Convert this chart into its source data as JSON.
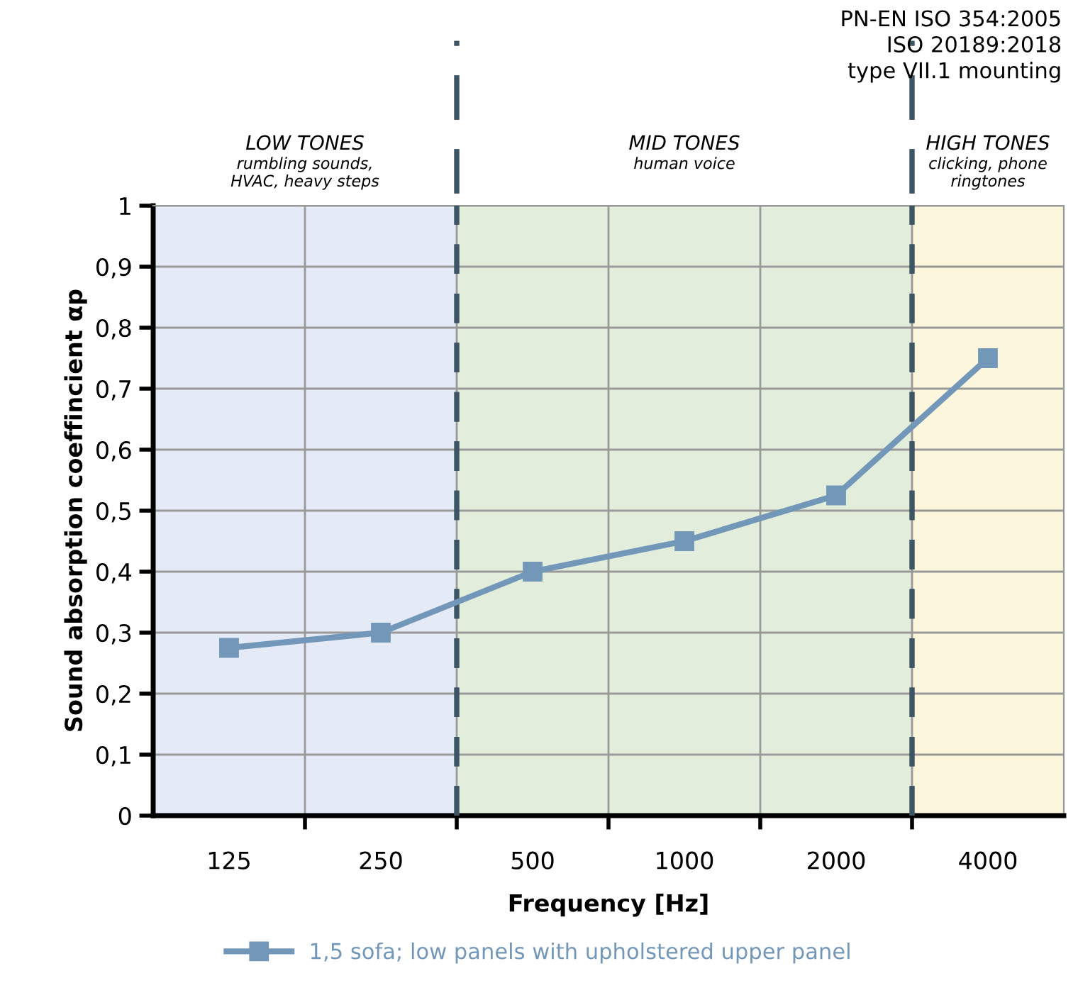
{
  "chart_data": {
    "type": "line",
    "xlabel": "Frequency [Hz]",
    "ylabel": "Sound absorption coeffincient αp",
    "categories": [
      "125",
      "250",
      "500",
      "1000",
      "2000",
      "4000"
    ],
    "series": [
      {
        "name": "1,5 sofa; low panels with upholstered upper panel",
        "color": "#7397b8",
        "values": [
          0.275,
          0.3,
          0.4,
          0.45,
          0.525,
          0.75
        ]
      }
    ],
    "ylim": [
      0,
      1
    ],
    "yticks": [
      0,
      {
        "value": 0.1,
        "label": "0,1"
      },
      {
        "value": 0.2,
        "label": "0,2"
      },
      {
        "value": 0.3,
        "label": "0,3"
      },
      {
        "value": 0.4,
        "label": "0,4"
      },
      {
        "value": 0.5,
        "label": "0,5"
      },
      {
        "value": 0.6,
        "label": "0,6"
      },
      {
        "value": 0.7,
        "label": "0,7"
      },
      {
        "value": 0.8,
        "label": "0,8"
      },
      {
        "value": 0.9,
        "label": "0,9"
      },
      1
    ],
    "bands": [
      {
        "axis": "x",
        "from": "125",
        "to": "250",
        "label": "LOW TONES\nrumbling sounds,\nHVAC, heavy steps",
        "color": "#e4eaf6"
      },
      {
        "axis": "x",
        "from": "500",
        "to": "2000",
        "label": "MID TONES\nhuman voice",
        "color": "#e2eedb"
      },
      {
        "axis": "x",
        "from": "4000",
        "to": "4000",
        "label": "HIGH TONES\nclicking, phone\nringtones",
        "color": "#fcf6dc"
      }
    ],
    "annotations": [
      "PN-EN ISO 354:2005\nISO 20189:2018\ntype VII.1 mounting"
    ],
    "grid": true,
    "legend": "bottom",
    "marker": "square",
    "line_style": "solid"
  }
}
